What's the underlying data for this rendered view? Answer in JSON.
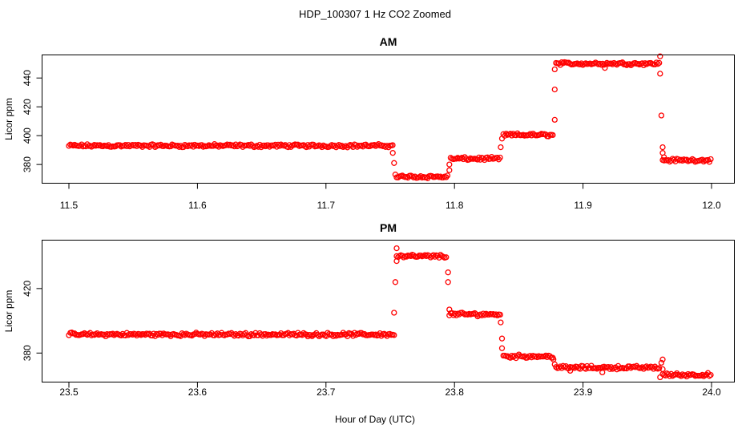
{
  "title": "HDP_100307  1 Hz CO2 Zoomed",
  "xlabel": "Hour of Day (UTC)",
  "colors": {
    "points": "#ff0000",
    "axes": "#000000",
    "background": "#ffffff"
  },
  "chart_data": [
    {
      "type": "scatter",
      "title": "AM",
      "xlabel": "",
      "ylabel": "Licor ppm",
      "xlim": [
        11.5,
        12.0
      ],
      "ylim": [
        367,
        456
      ],
      "xticks": [
        "11.5",
        "11.6",
        "11.7",
        "11.8",
        "11.9",
        "12.0"
      ],
      "yticks": [
        "380",
        "400",
        "420",
        "440"
      ],
      "marker": "open-circle",
      "series": [
        {
          "segments": [
            {
              "x": [
                11.5,
                11.752
              ],
              "y": 393
            },
            {
              "x": [
                11.755,
                11.795
              ],
              "y": 371.5
            },
            {
              "x": [
                11.797,
                11.836
              ],
              "y": 384
            },
            {
              "x": [
                11.838,
                11.877
              ],
              "y": 400.5
            },
            {
              "x": [
                11.879,
                11.96
              ],
              "y": 450
            },
            {
              "x": [
                11.962,
                12.0
              ],
              "y": 383
            }
          ],
          "transition_points": [
            [
              11.752,
              388
            ],
            [
              11.753,
              381
            ],
            [
              11.754,
              373
            ],
            [
              11.796,
              380
            ],
            [
              11.796,
              376
            ],
            [
              11.836,
              392
            ],
            [
              11.837,
              398
            ],
            [
              11.878,
              411
            ],
            [
              11.878,
              432
            ],
            [
              11.878,
              446
            ],
            [
              11.917,
              447
            ],
            [
              11.96,
              455
            ],
            [
              11.96,
              443
            ],
            [
              11.961,
              414
            ],
            [
              11.962,
              392
            ],
            [
              11.962,
              388
            ],
            [
              11.963,
              385
            ]
          ]
        }
      ]
    },
    {
      "type": "scatter",
      "title": "PM",
      "xlabel": "Hour of Day (UTC)",
      "ylabel": "Licor ppm",
      "xlim": [
        23.5,
        24.0
      ],
      "ylim": [
        362,
        450
      ],
      "xticks": [
        "23.5",
        "23.6",
        "23.7",
        "23.8",
        "23.9",
        "24.0"
      ],
      "yticks": [
        "380",
        "420"
      ],
      "marker": "open-circle",
      "series": [
        {
          "segments": [
            {
              "x": [
                23.5,
                23.753
              ],
              "y": 391.5
            },
            {
              "x": [
                23.755,
                23.794
              ],
              "y": 440
            },
            {
              "x": [
                23.796,
                23.836
              ],
              "y": 404
            },
            {
              "x": [
                23.838,
                23.877
              ],
              "y": 378
            },
            {
              "x": [
                23.879,
                23.96
              ],
              "y": 371
            },
            {
              "x": [
                23.962,
                24.0
              ],
              "y": 366.5
            }
          ],
          "transition_points": [
            [
              23.753,
              405
            ],
            [
              23.754,
              424
            ],
            [
              23.755,
              445
            ],
            [
              23.755,
              437
            ],
            [
              23.795,
              430
            ],
            [
              23.795,
              424
            ],
            [
              23.796,
              407
            ],
            [
              23.836,
              399
            ],
            [
              23.837,
              389
            ],
            [
              23.837,
              383
            ],
            [
              23.877,
              376
            ],
            [
              23.878,
              373
            ],
            [
              23.89,
              369
            ],
            [
              23.915,
              368
            ],
            [
              23.96,
              365
            ],
            [
              23.961,
              374
            ],
            [
              23.962,
              376
            ],
            [
              23.962,
              370
            ]
          ]
        }
      ]
    }
  ]
}
